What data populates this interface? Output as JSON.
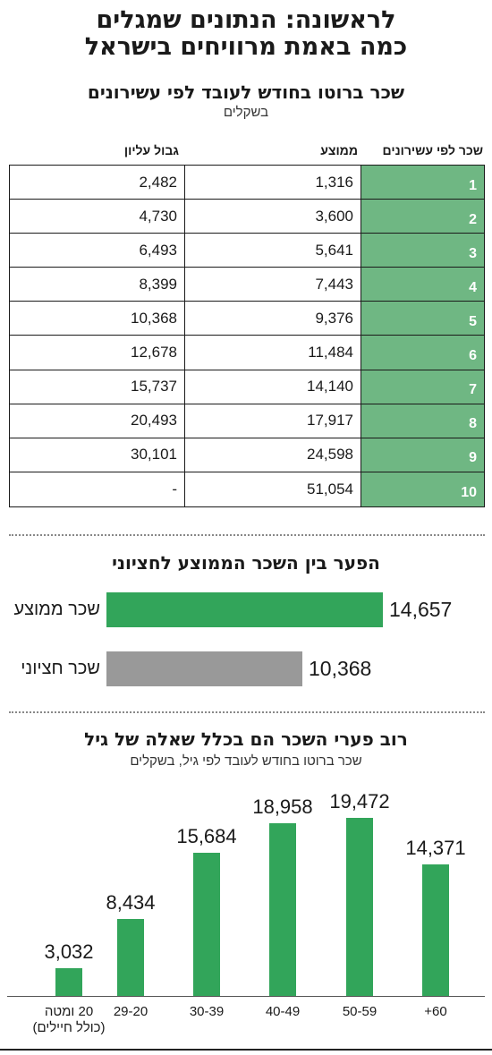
{
  "title": {
    "line1": "לראשונה: הנתונים שמגלים",
    "line2": "כמה באמת מרוויחים בישראל"
  },
  "table": {
    "title": "שכר ברוטו בחודש לעובד לפי עשירונים",
    "subtitle": "בשקלים",
    "headers": {
      "decile": "שכר לפי עשירונים",
      "average": "ממוצע",
      "upper": "גבול עליון"
    },
    "rows": [
      {
        "decile": "1",
        "average": "1,316",
        "upper": "2,482"
      },
      {
        "decile": "2",
        "average": "3,600",
        "upper": "4,730"
      },
      {
        "decile": "3",
        "average": "5,641",
        "upper": "6,493"
      },
      {
        "decile": "4",
        "average": "7,443",
        "upper": "8,399"
      },
      {
        "decile": "5",
        "average": "9,376",
        "upper": "10,368"
      },
      {
        "decile": "6",
        "average": "11,484",
        "upper": "12,678"
      },
      {
        "decile": "7",
        "average": "14,140",
        "upper": "15,737"
      },
      {
        "decile": "8",
        "average": "17,917",
        "upper": "20,493"
      },
      {
        "decile": "9",
        "average": "24,598",
        "upper": "30,101"
      },
      {
        "decile": "10",
        "average": "51,054",
        "upper": "-"
      }
    ]
  },
  "gap_chart": {
    "title": "הפער בין השכר הממוצע לחציוני",
    "bars": [
      {
        "label": "שכר ממוצע",
        "value": 14657,
        "display": "14,657",
        "color": "#32a55a"
      },
      {
        "label": "שכר חציוני",
        "value": 10368,
        "display": "10,368",
        "color": "#999999"
      }
    ]
  },
  "age_chart": {
    "title": "רוב פערי השכר הם בכלל שאלה של גיל",
    "subtitle": "שכר ברוטו בחודש לעובד לפי גיל, בשקלים",
    "color": "#32a55a"
  },
  "chart_data": [
    {
      "type": "table",
      "title": "שכר ברוטו בחודש לעובד לפי עשירונים",
      "subtitle": "בשקלים",
      "columns": [
        "שכר לפי עשירונים",
        "ממוצע",
        "גבול עליון"
      ],
      "rows": [
        [
          "1",
          1316,
          2482
        ],
        [
          "2",
          3600,
          4730
        ],
        [
          "3",
          5641,
          6493
        ],
        [
          "4",
          7443,
          8399
        ],
        [
          "5",
          9376,
          10368
        ],
        [
          "6",
          11484,
          12678
        ],
        [
          "7",
          14140,
          15737
        ],
        [
          "8",
          17917,
          20493
        ],
        [
          "9",
          24598,
          30101
        ],
        [
          "10",
          51054,
          "-"
        ]
      ]
    },
    {
      "type": "bar",
      "title": "הפער בין השכר הממוצע לחציוני",
      "categories": [
        "שכר ממוצע",
        "שכר חציוני"
      ],
      "values": [
        14657,
        10368
      ]
    },
    {
      "type": "bar",
      "title": "רוב פערי השכר הם בכלל שאלה של גיל",
      "subtitle": "שכר ברוטו בחודש לעובד לפי גיל, בשקלים",
      "categories": [
        "20 ומטה (כולל חיילים)",
        "29-20",
        "39-30",
        "49-40",
        "59-50",
        "+60"
      ],
      "category_labels": [
        [
          "20 ומטה",
          "(כולל חיילים)"
        ],
        [
          "29-20"
        ],
        [
          "30-39"
        ],
        [
          "40-49"
        ],
        [
          "50-59"
        ],
        [
          "60+"
        ]
      ],
      "values": [
        3032,
        8434,
        15684,
        18958,
        19472,
        14371
      ],
      "value_labels": [
        "3,032",
        "8,434",
        "15,684",
        "18,958",
        "19,472",
        "14,371"
      ]
    }
  ]
}
